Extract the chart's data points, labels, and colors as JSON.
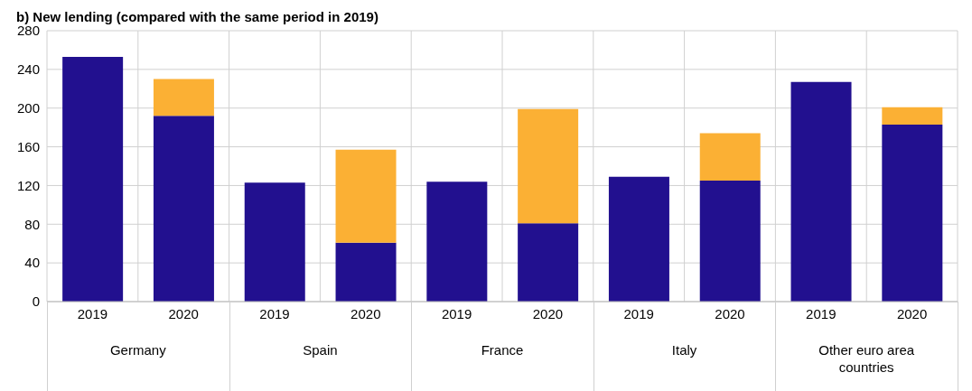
{
  "chart_data": {
    "type": "bar",
    "title": "b) New lending (compared with the same period in 2019)",
    "categories": [
      "2019",
      "2020",
      "2019",
      "2020",
      "2019",
      "2020",
      "2019",
      "2020",
      "2019",
      "2020"
    ],
    "series": [
      {
        "color": "#22108f",
        "values": [
          253,
          192,
          123,
          61,
          124,
          81,
          129,
          125,
          227,
          183
        ]
      },
      {
        "color": "#fbb034",
        "values": [
          0,
          38,
          0,
          96,
          0,
          118,
          0,
          49,
          0,
          18
        ]
      }
    ],
    "stacked": true,
    "ylim": [
      0,
      280
    ],
    "yticks": [
      0,
      40,
      80,
      120,
      160,
      200,
      240,
      280
    ],
    "grid": true,
    "annotations": [
      "Germany",
      "Spain",
      "France",
      "Italy",
      "Other euro area countries"
    ]
  }
}
